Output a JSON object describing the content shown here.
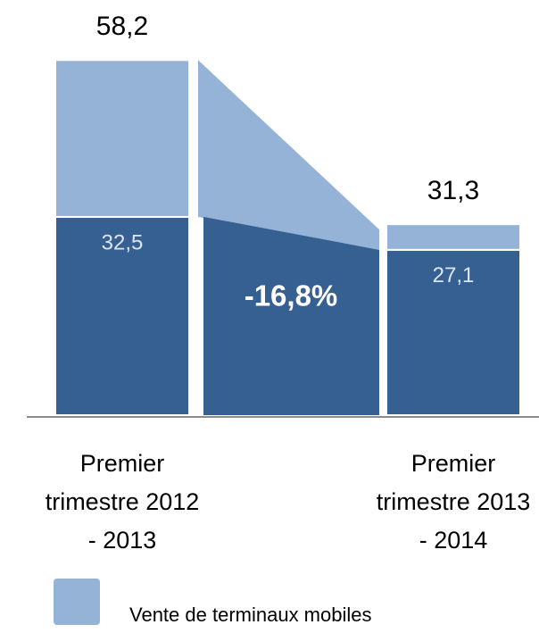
{
  "chart_data": {
    "type": "stacked_bar",
    "categories": [
      "Premier trimestre 2012 - 2013",
      "Premier trimestre 2013 - 2014"
    ],
    "series": [
      {
        "color": "#376092",
        "values": [
          32.5,
          27.1
        ],
        "value_labels": [
          "32,5",
          "27,1"
        ]
      },
      {
        "name": "Vente de terminaux mobiles",
        "color": "#95b3d7",
        "values": [
          25.7,
          4.2
        ]
      }
    ],
    "totals": [
      58.2,
      31.3
    ],
    "totals_labels": [
      "58,2",
      "31,3"
    ],
    "annotation": "-16,8%",
    "ylim": [
      0,
      60
    ]
  }
}
